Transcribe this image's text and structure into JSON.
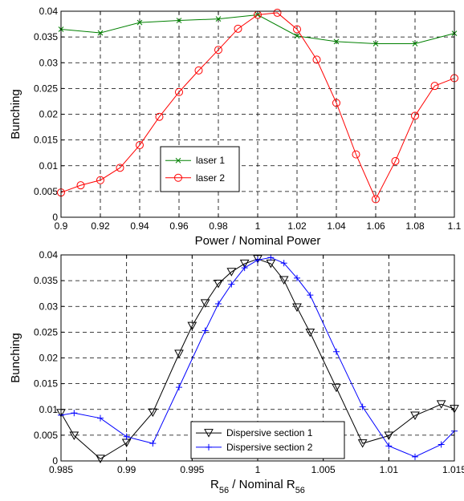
{
  "chart_data": [
    {
      "type": "line",
      "xlabel": "Power / Nominal Power",
      "ylabel": "Bunching",
      "xlim": [
        0.9,
        1.1
      ],
      "ylim": [
        0,
        0.04
      ],
      "xticks": [
        "0.9",
        "0.92",
        "0.94",
        "0.96",
        "0.98",
        "1",
        "1.02",
        "1.04",
        "1.06",
        "1.08",
        "1.1"
      ],
      "yticks": [
        "0",
        "0.005",
        "0.01",
        "0.015",
        "0.02",
        "0.025",
        "0.03",
        "0.035",
        "0.04"
      ],
      "grid": true,
      "legend_position": "lower-left",
      "series": [
        {
          "name": "laser 1",
          "color": "#008000",
          "marker": "x",
          "points": [
            [
              0.9,
              0.0365
            ],
            [
              0.92,
              0.0358
            ],
            [
              0.94,
              0.0378
            ],
            [
              0.96,
              0.0382
            ],
            [
              0.98,
              0.0385
            ],
            [
              1.0,
              0.0393
            ],
            [
              1.02,
              0.0352
            ],
            [
              1.04,
              0.0341
            ],
            [
              1.06,
              0.0337
            ],
            [
              1.08,
              0.0337
            ],
            [
              1.1,
              0.0357
            ]
          ]
        },
        {
          "name": "laser 2",
          "color": "#ff0000",
          "marker": "circle",
          "points": [
            [
              0.9,
              0.0048
            ],
            [
              0.91,
              0.0062
            ],
            [
              0.92,
              0.0072
            ],
            [
              0.93,
              0.0096
            ],
            [
              0.94,
              0.014
            ],
            [
              0.95,
              0.0195
            ],
            [
              0.96,
              0.0243
            ],
            [
              0.97,
              0.0285
            ],
            [
              0.98,
              0.0325
            ],
            [
              0.99,
              0.0366
            ],
            [
              1.0,
              0.0393
            ],
            [
              1.01,
              0.0397
            ],
            [
              1.02,
              0.0365
            ],
            [
              1.03,
              0.0306
            ],
            [
              1.04,
              0.0222
            ],
            [
              1.05,
              0.0122
            ],
            [
              1.06,
              0.0035
            ],
            [
              1.07,
              0.0109
            ],
            [
              1.08,
              0.0197
            ],
            [
              1.09,
              0.0255
            ],
            [
              1.1,
              0.027
            ]
          ]
        }
      ]
    },
    {
      "type": "line",
      "xlabel": "R56 / Nominal R56",
      "ylabel": "Bunching",
      "xlim": [
        0.985,
        1.015
      ],
      "ylim": [
        0,
        0.04
      ],
      "xticks": [
        "0.985",
        "0.99",
        "0.995",
        "1",
        "1.005",
        "1.01",
        "1.015"
      ],
      "yticks": [
        "0",
        "0.005",
        "0.01",
        "0.015",
        "0.02",
        "0.025",
        "0.03",
        "0.035",
        "0.04"
      ],
      "grid": true,
      "legend_position": "lower-right",
      "series": [
        {
          "name": "Dispersive section 1",
          "color": "#000000",
          "marker": "triangle-down",
          "points": [
            [
              0.985,
              0.0093
            ],
            [
              0.986,
              0.0049
            ],
            [
              0.988,
              0.0004
            ],
            [
              0.99,
              0.0035
            ],
            [
              0.992,
              0.0094
            ],
            [
              0.994,
              0.0208
            ],
            [
              0.995,
              0.0262
            ],
            [
              0.996,
              0.0306
            ],
            [
              0.997,
              0.0344
            ],
            [
              0.998,
              0.0367
            ],
            [
              0.999,
              0.0383
            ],
            [
              1.0,
              0.0392
            ],
            [
              1.001,
              0.0383
            ],
            [
              1.002,
              0.0351
            ],
            [
              1.003,
              0.0298
            ],
            [
              1.004,
              0.0249
            ],
            [
              1.006,
              0.0142
            ],
            [
              1.008,
              0.0034
            ],
            [
              1.01,
              0.0049
            ],
            [
              1.012,
              0.0088
            ],
            [
              1.014,
              0.011
            ],
            [
              1.015,
              0.0101
            ]
          ]
        },
        {
          "name": "Dispersive section 2",
          "color": "#0000ff",
          "marker": "plus",
          "points": [
            [
              0.985,
              0.0089
            ],
            [
              0.986,
              0.0093
            ],
            [
              0.988,
              0.0083
            ],
            [
              0.99,
              0.0047
            ],
            [
              0.992,
              0.0034
            ],
            [
              0.994,
              0.0143
            ],
            [
              0.996,
              0.0253
            ],
            [
              0.997,
              0.0305
            ],
            [
              0.998,
              0.0343
            ],
            [
              0.999,
              0.0375
            ],
            [
              1.0,
              0.039
            ],
            [
              1.001,
              0.0395
            ],
            [
              1.002,
              0.0384
            ],
            [
              1.003,
              0.0355
            ],
            [
              1.004,
              0.0322
            ],
            [
              1.006,
              0.0212
            ],
            [
              1.008,
              0.0105
            ],
            [
              1.01,
              0.0029
            ],
            [
              1.012,
              0.0008
            ],
            [
              1.014,
              0.0032
            ],
            [
              1.015,
              0.0058
            ]
          ]
        }
      ]
    }
  ]
}
